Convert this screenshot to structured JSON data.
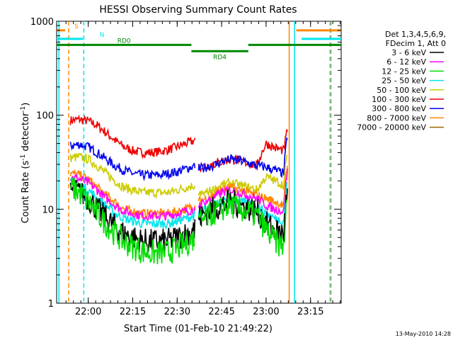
{
  "chart_data": {
    "type": "line",
    "title": "HESSI Observing Summary Count Rates",
    "xlabel": "Start Time (01-Feb-10 21:49:22)",
    "ylabel": "Count Rate (s",
    "ylabel_sup": "-1",
    "ylabel_mid": " detector",
    "ylabel_sup2": "-1",
    "ylabel_end": ")",
    "yscale": "log",
    "ylim": [
      1,
      1000
    ],
    "xlim": [
      21.8222,
      23.4222
    ],
    "x_ticks": [
      {
        "value": 22.0,
        "label": "22:00"
      },
      {
        "value": 22.25,
        "label": "22:15"
      },
      {
        "value": 22.5,
        "label": "22:30"
      },
      {
        "value": 22.75,
        "label": "22:45"
      },
      {
        "value": 23.0,
        "label": "23:00"
      },
      {
        "value": 23.25,
        "label": "23:15"
      }
    ],
    "y_ticks": [
      {
        "value": 1,
        "label": "1"
      },
      {
        "value": 10,
        "label": "10"
      },
      {
        "value": 100,
        "label": "100"
      },
      {
        "value": 1000,
        "label": "1000"
      }
    ],
    "legend": {
      "placement": "right",
      "header": [
        "Det 1,3,4,5,6,9,",
        "FDecim 1, Att 0"
      ],
      "entries": [
        {
          "label": "3 - 6 keV",
          "color": "#000000"
        },
        {
          "label": "6 - 12 keV",
          "color": "#ff00ff"
        },
        {
          "label": "12 - 25 keV",
          "color": "#00dd00"
        },
        {
          "label": "25 - 50 keV",
          "color": "#00e5ee"
        },
        {
          "label": "50 - 100 keV",
          "color": "#cccc00"
        },
        {
          "label": "100 - 300 keV",
          "color": "#ee0000"
        },
        {
          "label": "300 - 800 keV",
          "color": "#0000ee"
        },
        {
          "label": "800 - 7000 keV",
          "color": "#ff8800"
        },
        {
          "label": "7000 - 20000 keV",
          "color": "#996600"
        }
      ]
    },
    "series": [
      {
        "color": "#ee0000",
        "x": [
          21.9,
          21.95,
          22.0,
          22.05,
          22.1,
          22.15,
          22.2,
          22.25,
          22.3,
          22.35,
          22.4,
          22.45,
          22.5,
          22.55,
          22.6
        ],
        "values": [
          88,
          90,
          87,
          78,
          65,
          54,
          46,
          42,
          40,
          40,
          41,
          43,
          46,
          50,
          54
        ]
      },
      {
        "color": "#0000ee",
        "x": [
          21.9,
          21.95,
          22.0,
          22.05,
          22.1,
          22.15,
          22.2,
          22.25,
          22.3,
          22.35,
          22.4,
          22.45,
          22.5,
          22.55,
          22.6
        ],
        "values": [
          47,
          49,
          46,
          40,
          34,
          29,
          26,
          24,
          23,
          23,
          23,
          24,
          25,
          27,
          29
        ]
      },
      {
        "color": "#cccc00",
        "x": [
          21.9,
          21.95,
          22.0,
          22.05,
          22.1,
          22.15,
          22.2,
          22.25,
          22.3,
          22.35,
          22.4,
          22.45,
          22.5,
          22.55,
          22.6
        ],
        "values": [
          35,
          36,
          34,
          29,
          24,
          20,
          17,
          16,
          15,
          15,
          15,
          15,
          16,
          17,
          18
        ]
      },
      {
        "color": "#ff8800",
        "x": [
          21.9,
          21.95,
          22.0,
          22.05,
          22.1,
          22.15,
          22.2,
          22.25,
          22.3,
          22.35,
          22.4,
          22.45,
          22.5,
          22.55,
          22.6
        ],
        "values": [
          24,
          23,
          21,
          17,
          14,
          12,
          10,
          9.5,
          9,
          9,
          9,
          9,
          9.5,
          10,
          11
        ]
      },
      {
        "color": "#ff00ff",
        "x": [
          21.9,
          21.95,
          22.0,
          22.05,
          22.1,
          22.15,
          22.2,
          22.25,
          22.3,
          22.35,
          22.4,
          22.45,
          22.5,
          22.55,
          22.6
        ],
        "values": [
          22,
          21,
          19,
          16,
          13,
          11,
          9.5,
          9,
          8.5,
          8.5,
          8.5,
          8.5,
          9,
          9.5,
          10
        ]
      },
      {
        "color": "#00e5ee",
        "x": [
          21.9,
          21.95,
          22.0,
          22.05,
          22.1,
          22.15,
          22.2,
          22.25,
          22.3,
          22.35,
          22.4,
          22.45,
          22.5,
          22.55,
          22.6
        ],
        "values": [
          19,
          18,
          16,
          13,
          11,
          9,
          8,
          7.5,
          7,
          7,
          7,
          7,
          7.5,
          8,
          8.5
        ]
      },
      {
        "color": "#000000",
        "x": [
          21.9,
          21.95,
          22.0,
          22.05,
          22.1,
          22.15,
          22.2,
          22.25,
          22.3,
          22.35,
          22.4,
          22.45,
          22.5,
          22.55,
          22.6
        ],
        "values": [
          16,
          15,
          13,
          10,
          8,
          6.5,
          5.5,
          5,
          4.6,
          4.5,
          4.5,
          4.6,
          5,
          5.5,
          6
        ]
      },
      {
        "color": "#00dd00",
        "x": [
          21.9,
          21.95,
          22.0,
          22.05,
          22.1,
          22.15,
          22.2,
          22.25,
          22.3,
          22.35,
          22.4,
          22.45,
          22.5,
          22.55,
          22.6
        ],
        "values": [
          17,
          15,
          12,
          9,
          7,
          5.5,
          4.5,
          4,
          3.6,
          3.4,
          3.4,
          3.5,
          3.8,
          4.3,
          5
        ]
      }
    ],
    "series_flare": [
      {
        "color": "#ee0000",
        "x": [
          22.62,
          22.7,
          22.75,
          22.8,
          22.85,
          22.95,
          23.0,
          23.05,
          23.1,
          23.12
        ],
        "values": [
          28,
          30,
          32,
          34,
          33,
          29,
          50,
          45,
          42,
          70
        ]
      },
      {
        "color": "#0000ee",
        "x": [
          22.62,
          22.7,
          22.75,
          22.8,
          22.85,
          22.95,
          23.0,
          23.05,
          23.1,
          23.12
        ],
        "values": [
          27,
          29,
          32,
          34,
          33,
          29,
          28,
          26,
          24,
          60
        ]
      },
      {
        "color": "#cccc00",
        "x": [
          22.62,
          22.7,
          22.75,
          22.8,
          22.85,
          22.95,
          23.0,
          23.05,
          23.1,
          23.12
        ],
        "values": [
          14,
          16,
          18,
          19,
          18,
          16,
          22,
          20,
          18,
          40
        ]
      },
      {
        "color": "#ff8800",
        "x": [
          22.62,
          22.7,
          22.75,
          22.8,
          22.85,
          22.95,
          23.0,
          23.05,
          23.1,
          23.12
        ],
        "values": [
          12,
          14,
          16,
          17,
          16,
          14,
          13,
          12,
          11,
          30
        ]
      },
      {
        "color": "#ff00ff",
        "x": [
          22.62,
          22.7,
          22.75,
          22.8,
          22.85,
          22.95,
          23.0,
          23.05,
          23.1,
          23.12
        ],
        "values": [
          11,
          13,
          15,
          16,
          15,
          13,
          11,
          10,
          9.5,
          25
        ]
      },
      {
        "color": "#00e5ee",
        "x": [
          22.62,
          22.7,
          22.75,
          22.8,
          22.85,
          22.95,
          23.0,
          23.05,
          23.1,
          23.12
        ],
        "values": [
          9,
          11,
          12,
          13,
          12,
          11,
          9,
          8,
          7.5,
          20
        ]
      },
      {
        "color": "#000000",
        "x": [
          22.62,
          22.7,
          22.75,
          22.8,
          22.85,
          22.95,
          23.0,
          23.05,
          23.1,
          23.12
        ],
        "values": [
          8,
          10,
          11,
          12,
          11,
          9.5,
          7,
          6,
          5.5,
          15
        ]
      },
      {
        "color": "#00dd00",
        "x": [
          22.62,
          22.7,
          22.75,
          22.8,
          22.85,
          22.95,
          23.0,
          23.05,
          23.1,
          23.12
        ],
        "values": [
          7,
          9,
          10,
          11,
          10,
          8.5,
          6,
          4.5,
          4,
          12
        ]
      }
    ],
    "flags": [
      {
        "label": "S",
        "color": "#ff8800",
        "level": 800,
        "x_start": 21.8222,
        "x_end": 21.87
      },
      {
        "label": "N",
        "color": "#00e5ee",
        "level": 650,
        "x_start": 21.8222,
        "x_end": 21.97
      },
      {
        "label": "RD0",
        "color": "#008800",
        "level": 560,
        "x_start": 21.8222,
        "x_end": 22.58
      },
      {
        "label": "RD4",
        "color": "#008800",
        "level": 480,
        "x_start": 22.58,
        "x_end": 22.9
      },
      {
        "label": "",
        "color": "#008800",
        "level": 560,
        "x_start": 22.9,
        "x_end": 23.4222
      },
      {
        "label": "",
        "color": "#ff8800",
        "level": 800,
        "x_start": 23.17,
        "x_end": 23.4222
      },
      {
        "label": "",
        "color": "#00e5ee",
        "level": 650,
        "x_start": 23.2,
        "x_end": 23.4222
      }
    ],
    "vlines": [
      {
        "x": 21.835,
        "color": "#00e5ee",
        "dash": false
      },
      {
        "x": 21.89,
        "color": "#ff8800",
        "dash": true
      },
      {
        "x": 21.975,
        "color": "#00e5ee",
        "dash": true
      },
      {
        "x": 23.13,
        "color": "#ff8800",
        "dash": false
      },
      {
        "x": 23.16,
        "color": "#00e5ee",
        "dash": false
      },
      {
        "x": 23.36,
        "color": "#ff8800",
        "dash": true
      },
      {
        "x": 23.365,
        "color": "#00e5ee",
        "dash": true
      }
    ],
    "timestamp": "13-May-2010 14:28"
  }
}
